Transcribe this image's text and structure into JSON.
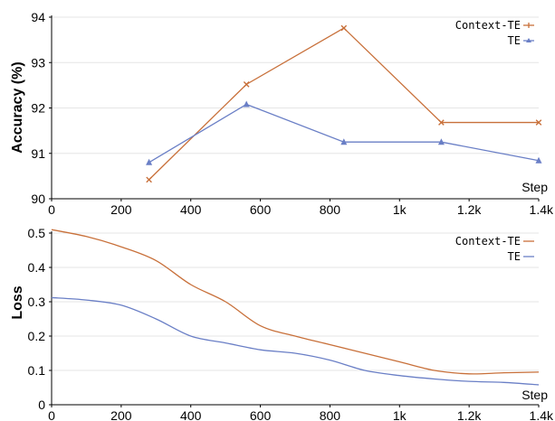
{
  "chart_data": [
    {
      "type": "line",
      "ylabel": "Accuracy (%)",
      "xlabel": "Step",
      "xlim": [
        0,
        1400
      ],
      "ylim": [
        90,
        94
      ],
      "xticks": [
        0,
        200,
        400,
        600,
        800,
        1000,
        1200,
        1400
      ],
      "xtick_labels": [
        "0",
        "200",
        "400",
        "600",
        "800",
        "1k",
        "1.2k",
        "1.4k"
      ],
      "yticks": [
        90,
        91,
        92,
        93,
        94
      ],
      "ytick_labels": [
        "90",
        "91",
        "92",
        "93",
        "94"
      ],
      "grid": true,
      "legend": "top-right",
      "series": [
        {
          "name": "Context-TE",
          "color": "#c8703a",
          "marker": "plus",
          "x": [
            280,
            560,
            840,
            1120,
            1400
          ],
          "y": [
            90.42,
            92.52,
            93.76,
            91.68,
            91.68
          ]
        },
        {
          "name": "TE",
          "color": "#6a7fc6",
          "marker": "triangle",
          "x": [
            280,
            560,
            840,
            1120,
            1400
          ],
          "y": [
            90.8,
            92.08,
            91.25,
            91.25,
            90.84
          ]
        }
      ]
    },
    {
      "type": "line",
      "ylabel": "Loss",
      "xlabel": "Step",
      "xlim": [
        0,
        1400
      ],
      "ylim": [
        0,
        0.5
      ],
      "xticks": [
        0,
        200,
        400,
        600,
        800,
        1000,
        1200,
        1400
      ],
      "xtick_labels": [
        "0",
        "200",
        "400",
        "600",
        "800",
        "1k",
        "1.2k",
        "1.4k"
      ],
      "yticks": [
        0,
        0.1,
        0.2,
        0.3,
        0.4,
        0.5
      ],
      "ytick_labels": [
        "0",
        "0.1",
        "0.2",
        "0.3",
        "0.4",
        "0.5"
      ],
      "grid": true,
      "legend": "top-right",
      "series": [
        {
          "name": "Context-TE",
          "color": "#c8703a",
          "x": [
            0,
            100,
            200,
            300,
            400,
            500,
            600,
            700,
            800,
            900,
            1000,
            1100,
            1200,
            1300,
            1400
          ],
          "y": [
            0.51,
            0.49,
            0.46,
            0.42,
            0.35,
            0.3,
            0.23,
            0.2,
            0.175,
            0.15,
            0.125,
            0.1,
            0.09,
            0.093,
            0.095
          ]
        },
        {
          "name": "TE",
          "color": "#6a7fc6",
          "x": [
            0,
            100,
            200,
            300,
            400,
            500,
            600,
            700,
            800,
            900,
            1000,
            1100,
            1200,
            1300,
            1400
          ],
          "y": [
            0.312,
            0.305,
            0.29,
            0.25,
            0.2,
            0.18,
            0.16,
            0.15,
            0.13,
            0.1,
            0.085,
            0.075,
            0.068,
            0.065,
            0.058
          ]
        }
      ]
    }
  ]
}
